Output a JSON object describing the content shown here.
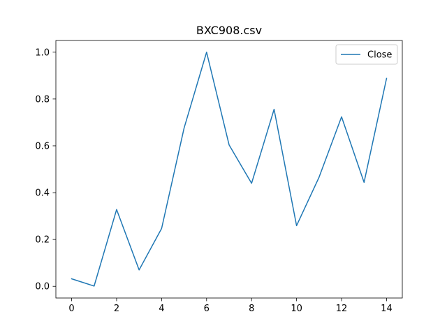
{
  "chart_data": {
    "type": "line",
    "title": "BXC908.csv",
    "xlabel": "",
    "ylabel": "",
    "x": [
      0,
      1,
      2,
      3,
      4,
      5,
      6,
      7,
      8,
      9,
      10,
      11,
      12,
      13,
      14
    ],
    "series": [
      {
        "name": "Close",
        "color": "#1f77b4",
        "values": [
          0.032,
          0.001,
          0.328,
          0.07,
          0.247,
          0.676,
          1.0,
          0.604,
          0.44,
          0.756,
          0.259,
          0.466,
          0.724,
          0.444,
          0.888
        ]
      }
    ],
    "xlim": [
      -0.7,
      14.7
    ],
    "ylim": [
      -0.05,
      1.05
    ],
    "xticks": [
      0,
      2,
      4,
      6,
      8,
      10,
      12,
      14
    ],
    "yticks": [
      0.0,
      0.2,
      0.4,
      0.6,
      0.8,
      1.0
    ],
    "xtick_labels": [
      "0",
      "2",
      "4",
      "6",
      "8",
      "10",
      "12",
      "14"
    ],
    "ytick_labels": [
      "0.0",
      "0.2",
      "0.4",
      "0.6",
      "0.8",
      "1.0"
    ],
    "grid": false,
    "legend_position": "top-right"
  }
}
